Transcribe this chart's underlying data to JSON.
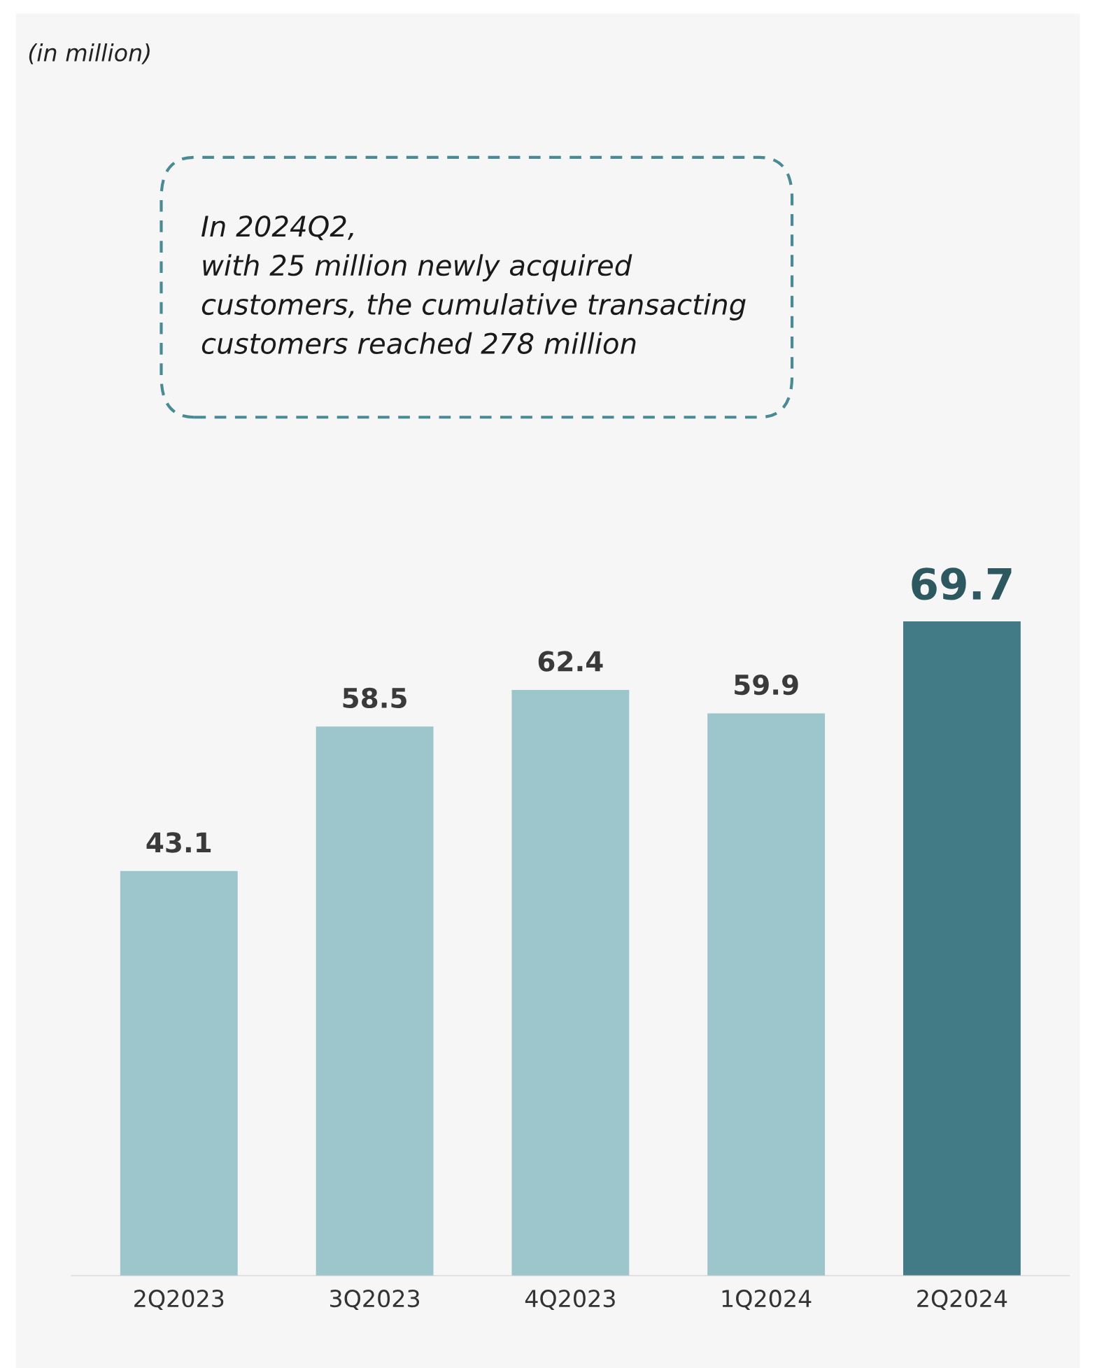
{
  "chart_data": {
    "type": "bar",
    "categories": [
      "2Q2023",
      "3Q2023",
      "4Q2023",
      "1Q2024",
      "2Q2024"
    ],
    "values": [
      43.1,
      58.5,
      62.4,
      59.9,
      69.7
    ],
    "colors": [
      "#9dc6cc",
      "#9dc6cc",
      "#9dc6cc",
      "#9dc6cc",
      "#427b85"
    ],
    "data_labels": true,
    "grid": false,
    "legend": false,
    "annotations": [
      "(in million)",
      "In 2024Q2,\nwith 25 million newly acquired\ncustomers, the cumulative transacting\ncustomers reached 278 million"
    ]
  }
}
